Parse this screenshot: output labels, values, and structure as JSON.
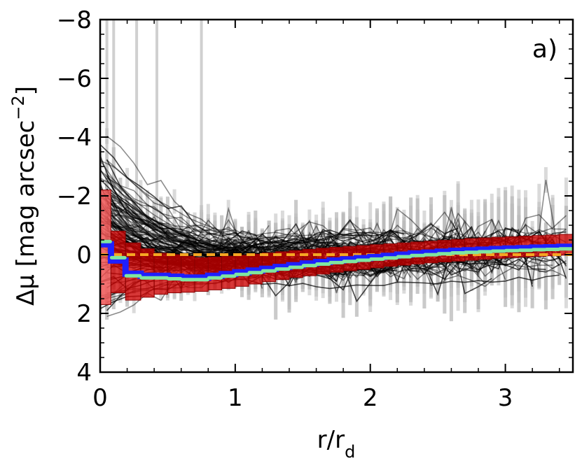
{
  "chart_data": {
    "type": "line",
    "panel_label": "a)",
    "xlabel": {
      "main": "r/r",
      "sub": "d"
    },
    "ylabel": {
      "main": "Δμ [mag arcsec",
      "sup": "−2",
      "close": "]"
    },
    "xlim": [
      0,
      3.5
    ],
    "ylim": [
      4,
      -8
    ],
    "y_inverted": true,
    "x_ticks": [
      0,
      1,
      2,
      3
    ],
    "x_tick_labels": [
      "0",
      "1",
      "2",
      "3"
    ],
    "y_ticks": [
      -8,
      -6,
      -4,
      -2,
      0,
      2,
      4
    ],
    "y_tick_labels": [
      "−8",
      "−6",
      "−4",
      "−2",
      "0",
      "2",
      "4"
    ],
    "reference_line": {
      "y": 0,
      "style": "dashed",
      "color": "#f5a623"
    },
    "individual_profiles": {
      "count": 170,
      "color": "#000000",
      "opacity": 0.45,
      "sample_step": 0.1,
      "error_bar_color": "#bdbdbd"
    },
    "binned_median": {
      "x": [
        0.025,
        0.125,
        0.25,
        0.35,
        0.45,
        0.55,
        0.65,
        0.75,
        0.85,
        0.95,
        1.05,
        1.15,
        1.25,
        1.35,
        1.45,
        1.55,
        1.65,
        1.75,
        1.85,
        1.95,
        2.05,
        2.15,
        2.25,
        2.35,
        2.45,
        2.55,
        2.65,
        2.75,
        2.85,
        2.95,
        3.05,
        3.15,
        3.25,
        3.35,
        3.45
      ],
      "y": [
        -0.35,
        0.2,
        0.65,
        0.72,
        0.72,
        0.75,
        0.78,
        0.78,
        0.72,
        0.66,
        0.6,
        0.54,
        0.48,
        0.42,
        0.36,
        0.3,
        0.25,
        0.2,
        0.16,
        0.12,
        0.08,
        0.04,
        0.0,
        -0.04,
        -0.07,
        -0.1,
        -0.13,
        -0.15,
        -0.17,
        -0.19,
        -0.21,
        -0.22,
        -0.24,
        -0.25,
        -0.27
      ],
      "line_color": "#1f1fff",
      "marker_color": "#7fe5a0"
    },
    "binned_spread": {
      "low": [
        -2.2,
        -0.8,
        -0.4,
        -0.2,
        -0.05,
        0.0,
        0.05,
        0.1,
        0.08,
        0.05,
        0.02,
        -0.02,
        -0.06,
        -0.1,
        -0.14,
        -0.18,
        -0.22,
        -0.25,
        -0.28,
        -0.31,
        -0.34,
        -0.37,
        -0.4,
        -0.43,
        -0.46,
        -0.49,
        -0.52,
        -0.55,
        -0.57,
        -0.59,
        -0.61,
        -0.63,
        -0.65,
        -0.67,
        -0.69
      ],
      "high": [
        1.7,
        1.3,
        1.55,
        1.45,
        1.35,
        1.3,
        1.28,
        1.25,
        1.2,
        1.15,
        1.08,
        1.0,
        0.92,
        0.85,
        0.78,
        0.72,
        0.66,
        0.6,
        0.55,
        0.5,
        0.45,
        0.4,
        0.36,
        0.32,
        0.28,
        0.25,
        0.22,
        0.19,
        0.16,
        0.13,
        0.1,
        0.08,
        0.06,
        0.04,
        0.02
      ],
      "fill_color": "#cc0000",
      "first_bin_fill_color": "#ee5555"
    }
  }
}
